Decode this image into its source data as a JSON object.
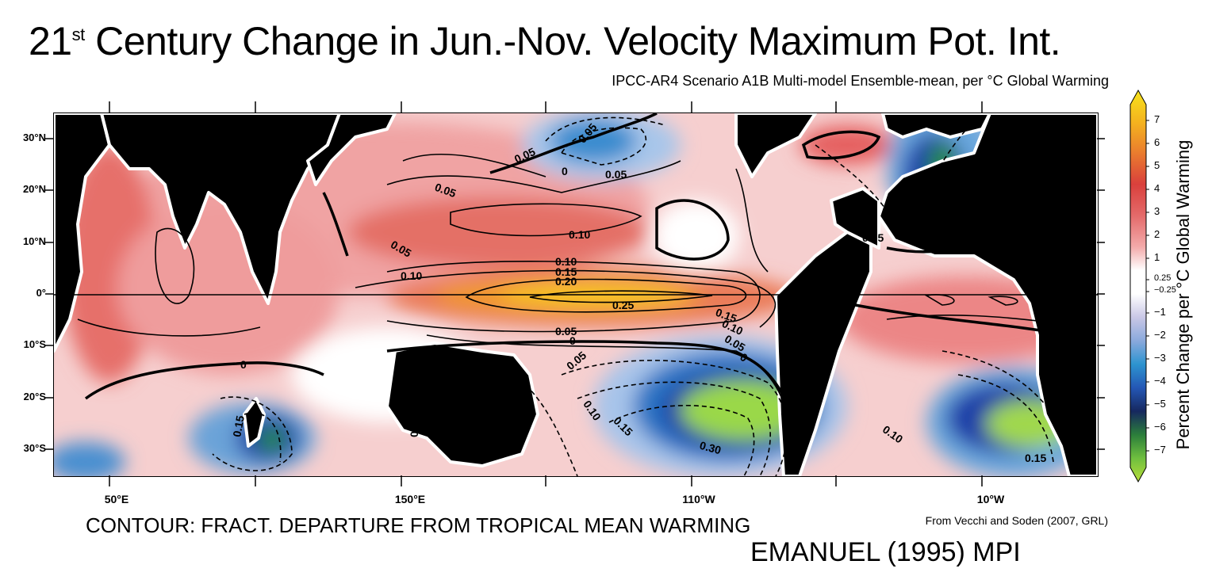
{
  "title": {
    "prefix": "21",
    "sup": "st",
    "rest": " Century Change in Jun.-Nov. Velocity Maximum Pot. Int."
  },
  "subtitle": "IPCC-AR4 Scenario A1B Multi-model Ensemble-mean, per °C Global Warming",
  "footer": {
    "contour_note": "CONTOUR: FRACT. DEPARTURE FROM TROPICAL MEAN WARMING",
    "source": "From Vecchi and Soden (2007, GRL)",
    "index": "EMANUEL (1995) MPI"
  },
  "axes": {
    "lat_ticks": [
      "30°N",
      "20°N",
      "10°N",
      "0°",
      "10°S",
      "20°S",
      "30°S"
    ],
    "lon_ticks": [
      "50°E",
      "150°E",
      "110°W",
      "10°W"
    ]
  },
  "colorbar": {
    "label": "Percent Change per °C Global Warming",
    "ticks": [
      "7",
      "6",
      "5",
      "4",
      "3",
      "2",
      "1",
      "0.25",
      "−0.25",
      "−1",
      "−2",
      "−3",
      "−4",
      "−5",
      "−6",
      "−7"
    ]
  },
  "contour_labels": [
    "0.05",
    "0.05",
    "0.05",
    "0",
    "0.05",
    "0.10",
    "0.05",
    "0.10",
    "0.15",
    "0.20",
    "0.10",
    "0.25",
    "0.15",
    "0.10",
    "0.05",
    "0.05",
    "0",
    "0",
    "0",
    "0.05",
    "0.10",
    "0.15",
    "0.30",
    "0.15",
    "0.05",
    "0.10",
    "0.15",
    "0",
    "0.05"
  ],
  "colors": {
    "land": "#000000",
    "positive_low": "#f4c2c2",
    "positive_mid": "#e8696b",
    "positive_high": "#e8902a",
    "peak": "#f6cf1c",
    "neutral": "#ffffff",
    "negative_low": "#c9c9e8",
    "negative_mid": "#3a9fd5",
    "negative_high": "#1d3fa8",
    "negative_peak": "#9fd84a"
  }
}
